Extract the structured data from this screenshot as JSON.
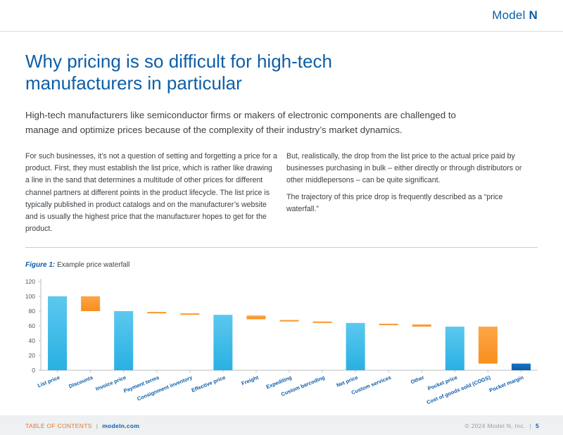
{
  "header": {
    "brand_text": "Model",
    "brand_mark": "N"
  },
  "title": "Why pricing is so difficult for high-tech manufacturers in particular",
  "intro": "High-tech manufacturers like semiconductor firms or makers of electronic components are challenged to manage and optimize prices because of the complexity of their industry’s market dynamics.",
  "body": {
    "left_paragraph": "For such businesses, it’s not a question of setting and forgetting a price for a product. First, they must establish the list price, which is rather like drawing a line in the sand that determines a multitude of other prices for different channel partners at different points in the product lifecycle. The list price is typically published in product catalogs and on the manufacturer’s website and is usually the highest price that the manufacturer hopes to get for the product.",
    "right_paragraph_1": "But, realistically, the drop from the list price to the actual price paid by businesses purchasing in bulk – either directly or through distributors or other middlepersons – can be quite significant.",
    "right_paragraph_2": "The trajectory of this price drop is frequently described as a “price waterfall.”"
  },
  "figure": {
    "label": "Figure 1:",
    "caption": "Example price waterfall"
  },
  "chart_data": {
    "type": "bar",
    "subtype": "waterfall",
    "categories": [
      "List price",
      "Discounts",
      "Invoice price",
      "Payment terms",
      "Consignment inventory",
      "Effective price",
      "Freight",
      "Expediting",
      "Custom barcoding",
      "Net price",
      "Custom services",
      "Other",
      "Pocket price",
      "Cost of goods sold (COGS)",
      "Pocket margin"
    ],
    "bars": [
      {
        "kind": "total",
        "low": 0,
        "high": 100
      },
      {
        "kind": "decrease",
        "low": 80,
        "high": 100
      },
      {
        "kind": "total",
        "low": 0,
        "high": 80
      },
      {
        "kind": "decrease",
        "low": 77,
        "high": 79
      },
      {
        "kind": "decrease",
        "low": 75,
        "high": 77
      },
      {
        "kind": "total",
        "low": 0,
        "high": 75
      },
      {
        "kind": "decrease",
        "low": 69,
        "high": 74
      },
      {
        "kind": "decrease",
        "low": 66,
        "high": 68
      },
      {
        "kind": "decrease",
        "low": 64,
        "high": 66
      },
      {
        "kind": "total",
        "low": 0,
        "high": 64
      },
      {
        "kind": "decrease",
        "low": 61,
        "high": 63
      },
      {
        "kind": "decrease",
        "low": 59,
        "high": 62
      },
      {
        "kind": "total",
        "low": 0,
        "high": 59
      },
      {
        "kind": "decrease",
        "low": 9,
        "high": 59
      },
      {
        "kind": "margin",
        "low": 0,
        "high": 9
      }
    ],
    "yticks": [
      0,
      20,
      40,
      60,
      80,
      100,
      120
    ],
    "ylim": [
      0,
      120
    ],
    "grid": false,
    "colors": {
      "total": "#29b0e3",
      "decrease": "#f7901e",
      "margin": "#0d5ea8"
    }
  },
  "footer": {
    "toc": "TABLE OF CONTENTS",
    "separator": "|",
    "site": "modeln.com",
    "copyright": "© 2024 Model N, Inc.",
    "page": "5"
  }
}
